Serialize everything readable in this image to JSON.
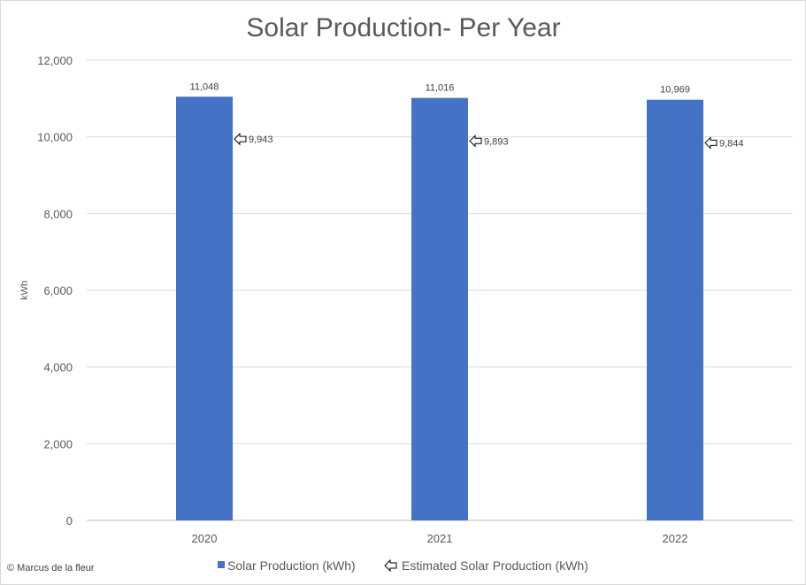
{
  "chart_data": {
    "type": "bar",
    "title": "Solar Production- Per Year",
    "xlabel": "",
    "ylabel": "kWh",
    "categories": [
      "2020",
      "2021",
      "2022"
    ],
    "series": [
      {
        "name": "Solar Production (kWh)",
        "type": "bar",
        "color": "#4472c4",
        "values": [
          11048,
          11016,
          10969
        ],
        "labels": [
          "11,048",
          "11,016",
          "10,969"
        ]
      },
      {
        "name": "Estimated Solar Production (kWh)",
        "type": "marker",
        "marker": "left-arrow-icon",
        "color": "#000000",
        "values": [
          9943,
          9893,
          9844
        ],
        "labels": [
          "9,943",
          "9,893",
          "9,844"
        ]
      }
    ],
    "ylim": [
      0,
      12000
    ],
    "yticks": [
      0,
      2000,
      4000,
      6000,
      8000,
      10000,
      12000
    ],
    "ytick_labels": [
      "0",
      "2,000",
      "4,000",
      "6,000",
      "8,000",
      "10,000",
      "12,000"
    ],
    "grid": true,
    "legend_position": "bottom",
    "credit": "© Marcus de la fleur"
  }
}
